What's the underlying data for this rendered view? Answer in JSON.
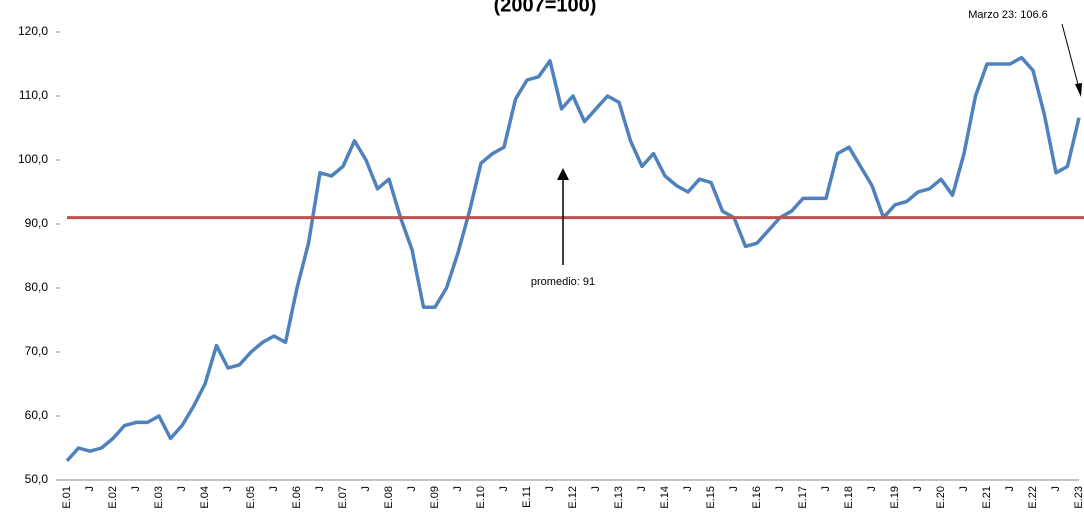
{
  "chart_data": {
    "type": "line",
    "title": "(2007=100)",
    "categories": [
      "E.01",
      null,
      "J",
      null,
      "E.02",
      null,
      "J",
      null,
      "E.03",
      null,
      "J",
      null,
      "E.04",
      null,
      "J",
      null,
      "E.05",
      null,
      "J",
      null,
      "E.06",
      null,
      "J",
      null,
      "E.07",
      null,
      "J",
      null,
      "E.08",
      null,
      "J",
      null,
      "E.09",
      null,
      "J",
      null,
      "E.10",
      null,
      "J",
      null,
      "E.11",
      null,
      "J",
      null,
      "E.12",
      null,
      "J",
      null,
      "E.13",
      null,
      "J",
      null,
      "E.14",
      null,
      "J",
      null,
      "E.15",
      null,
      "J",
      null,
      "E.16",
      null,
      "J",
      null,
      "E.17",
      null,
      "J",
      null,
      "E.18",
      null,
      "J",
      null,
      "E.19",
      null,
      "J",
      null,
      "E.20",
      null,
      "J",
      null,
      "E.21",
      null,
      "J",
      null,
      "E.22",
      null,
      "J",
      null,
      "E.23"
    ],
    "series": [
      {
        "color": "#4f81bd",
        "values": [
          53,
          55,
          54.5,
          55,
          56.5,
          58.5,
          59,
          59,
          60,
          56.5,
          58.5,
          61.5,
          65,
          71,
          67.5,
          68,
          70,
          71.5,
          72.5,
          71.5,
          80,
          87,
          98,
          97.5,
          99,
          103,
          100,
          95.5,
          97,
          91,
          86,
          77,
          77,
          80,
          85.5,
          92,
          99.5,
          101,
          102,
          109.5,
          112.5,
          113,
          115.5,
          108,
          110,
          106,
          108,
          110,
          109,
          103,
          99,
          101,
          97.5,
          96,
          95,
          97,
          96.5,
          92,
          91,
          86.5,
          87,
          89,
          91,
          92,
          94,
          94,
          94,
          101,
          102,
          99,
          96,
          91,
          93,
          93.5,
          95,
          95.5,
          97,
          94.5,
          101,
          110,
          115,
          115,
          115,
          116,
          114,
          107,
          98,
          99,
          106.6
        ]
      }
    ],
    "average": 91,
    "average_color": "#c0504d",
    "average_label": "promedio: 91",
    "last_label": "Marzo 23: 106.6",
    "ylim": [
      50,
      120
    ],
    "yticks": [
      {
        "value": 50,
        "label": "50,0"
      },
      {
        "value": 60,
        "label": "60,0"
      },
      {
        "value": 70,
        "label": "70,0"
      },
      {
        "value": 80,
        "label": "80,0"
      },
      {
        "value": 90,
        "label": "90,0"
      },
      {
        "value": 100,
        "label": "100,0"
      },
      {
        "value": 110,
        "label": "110,0"
      },
      {
        "value": 120,
        "label": "120,0"
      }
    ]
  }
}
